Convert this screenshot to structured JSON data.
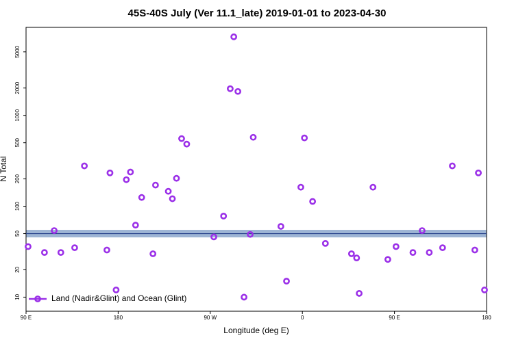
{
  "chart_data": {
    "type": "scatter",
    "title": "45S-40S July (Ver 11.1_late)   2019-01-01 to 2023-04-30",
    "x_label": "Longitude (deg E)",
    "y_label": "N Total",
    "log_y": true,
    "xlim": [
      90,
      540
    ],
    "xticks": [
      {
        "value": 90,
        "label": "90 E"
      },
      180,
      {
        "value": 270,
        "label": "90 W"
      },
      {
        "value": 360,
        "label": "0"
      },
      {
        "value": 450,
        "label": "90 E"
      },
      {
        "value": 540,
        "label": "180"
      }
    ],
    "ylim": [
      7,
      9300
    ],
    "yticks": [
      10,
      20,
      50,
      100,
      200,
      500,
      1000,
      2000,
      5000
    ],
    "reference_line": 50,
    "legend": "bottom-left",
    "series": [
      {
        "name": "Land (Nadir&Glint) and Ocean (Glint)",
        "color": "#9b30e8",
        "x": [
          92,
          108,
          117.5,
          124,
          137.5,
          147,
          169,
          172,
          178,
          188,
          192,
          197,
          203,
          214,
          216.5,
          229,
          233,
          237,
          242,
          247,
          273.5,
          283,
          289.5,
          293,
          297,
          303,
          309,
          312,
          339,
          344.5,
          358.5,
          362,
          370,
          382.5,
          408,
          413,
          415.5,
          429,
          443.5,
          451.5,
          468,
          477,
          484,
          497,
          506.5,
          528.5,
          532,
          538
        ],
        "values": [
          36,
          31,
          54,
          31,
          35,
          278,
          33,
          233,
          12,
          196,
          238,
          62,
          125,
          30,
          171,
          146,
          121,
          203,
          555,
          483,
          46,
          78,
          1965,
          7320,
          1833,
          10,
          49,
          574,
          60,
          15,
          162,
          565,
          113,
          39,
          30,
          27,
          11,
          162,
          26,
          36,
          31,
          54,
          31,
          35,
          278,
          33,
          233,
          12
        ]
      }
    ]
  }
}
